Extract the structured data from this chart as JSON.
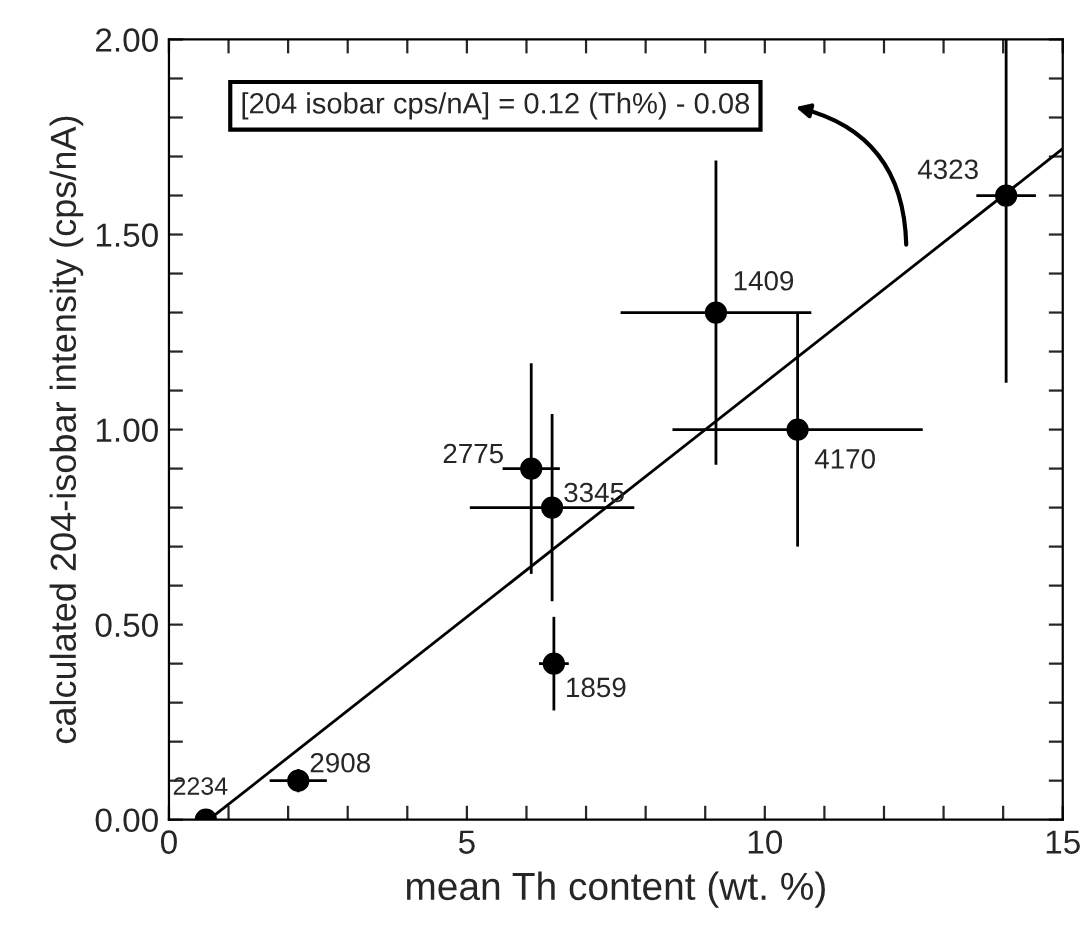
{
  "chart_data": {
    "type": "scatter",
    "xlabel": "mean Th content (wt. %)",
    "ylabel": "calculated 204-isobar intensity (cps/nA)",
    "xlim": [
      0,
      15
    ],
    "ylim": [
      0,
      2.0
    ],
    "xticks": [
      0,
      {
        "value": 1,
        "label": null
      },
      {
        "value": 2,
        "label": null
      },
      {
        "value": 3,
        "label": null
      },
      {
        "value": 4,
        "label": null
      },
      5,
      {
        "value": 6,
        "label": null
      },
      {
        "value": 7,
        "label": null
      },
      {
        "value": 8,
        "label": null
      },
      {
        "value": 9,
        "label": null
      },
      10,
      {
        "value": 11,
        "label": null
      },
      {
        "value": 12,
        "label": null
      },
      {
        "value": 13,
        "label": null
      },
      {
        "value": 14,
        "label": null
      },
      15
    ],
    "yticks": [
      {
        "value": 0,
        "label": "0.00"
      },
      {
        "value": 0.1,
        "label": null
      },
      {
        "value": 0.2,
        "label": null
      },
      {
        "value": 0.3,
        "label": null
      },
      {
        "value": 0.4,
        "label": null
      },
      {
        "value": 0.5,
        "label": "0.50"
      },
      {
        "value": 0.6,
        "label": null
      },
      {
        "value": 0.7,
        "label": null
      },
      {
        "value": 0.8,
        "label": null
      },
      {
        "value": 0.9,
        "label": null
      },
      {
        "value": 1.0,
        "label": "1.00"
      },
      {
        "value": 1.1,
        "label": null
      },
      {
        "value": 1.2,
        "label": null
      },
      {
        "value": 1.3,
        "label": null
      },
      {
        "value": 1.4,
        "label": null
      },
      {
        "value": 1.5,
        "label": "1.50"
      },
      {
        "value": 1.6,
        "label": null
      },
      {
        "value": 1.7,
        "label": null
      },
      {
        "value": 1.8,
        "label": null
      },
      {
        "value": 1.9,
        "label": null
      },
      {
        "value": 2.0,
        "label": "2.00"
      }
    ],
    "grid": false,
    "legend": false,
    "series": [
      {
        "marker": "circle",
        "color": "#000000",
        "x": [
          0.62,
          2.17,
          6.08,
          6.43,
          6.46,
          9.18,
          10.55,
          14.05
        ],
        "values": [
          0.0,
          0.1,
          0.9,
          0.8,
          0.4,
          1.3,
          1.0,
          1.6
        ],
        "errors": [
          null,
          0.03,
          0.27,
          0.24,
          0.12,
          0.39,
          0.3,
          [
            1.12,
            2.0
          ]
        ],
        "xerrors": [
          null,
          0.48,
          0.48,
          1.38,
          0.25,
          1.6,
          2.1,
          0.5
        ]
      },
      {
        "type": "line",
        "color": "#000000",
        "x": [
          0.67,
          15
        ],
        "values": [
          0.0,
          1.72
        ]
      }
    ],
    "annotations": [
      {
        "text": "2234",
        "x": 0.62,
        "y": 0.0
      },
      {
        "text": "2908",
        "x": 2.17,
        "y": 0.1
      },
      {
        "text": "2775",
        "x": 6.08,
        "y": 0.9
      },
      {
        "text": "3345",
        "x": 6.43,
        "y": 0.8
      },
      {
        "text": "1859",
        "x": 6.46,
        "y": 0.4
      },
      {
        "text": "1409",
        "x": 9.18,
        "y": 1.3
      },
      {
        "text": "4170",
        "x": 10.55,
        "y": 1.0
      },
      {
        "text": "4323",
        "x": 14.05,
        "y": 1.6
      },
      "[204 isobar cps/nA] = 0.12 (Th%) - 0.08"
    ]
  }
}
